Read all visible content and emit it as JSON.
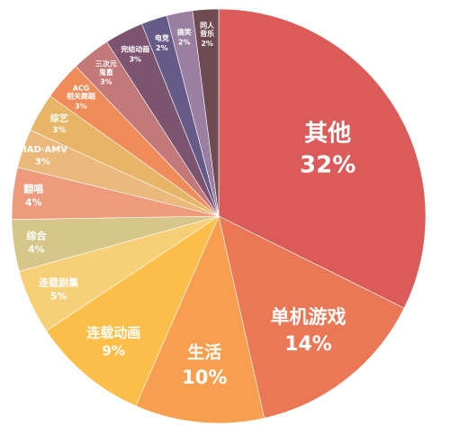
{
  "chart_data": {
    "type": "pie",
    "title": "",
    "slices": [
      {
        "label": "其他",
        "value": 32,
        "text": "32%",
        "color": "#DA5B5A"
      },
      {
        "label": "单机游戏",
        "value": 14,
        "text": "14%",
        "color": "#EA7755"
      },
      {
        "label": "生活",
        "value": 10,
        "text": "10%",
        "color": "#F79F4E"
      },
      {
        "label": "连载动画",
        "value": 9,
        "text": "9%",
        "color": "#FBBE48"
      },
      {
        "label": "连载剧集",
        "value": 5,
        "text": "5%",
        "color": "#F7CF78"
      },
      {
        "label": "综合",
        "value": 4,
        "text": "4%",
        "color": "#D7C68A"
      },
      {
        "label": "翻唱",
        "value": 4,
        "text": "4%",
        "color": "#EE9A7D"
      },
      {
        "label": "MAD·AMV",
        "value": 3,
        "text": "3%",
        "color": "#EBB97C"
      },
      {
        "label": "综艺",
        "value": 3,
        "text": "3%",
        "color": "#E6B568"
      },
      {
        "label": "ACG\n相关舞蹈",
        "value": 3,
        "text": "3%",
        "color": "#EF8C5A"
      },
      {
        "label": "三次元\n鬼畜",
        "value": 3,
        "text": "3%",
        "color": "#C37879"
      },
      {
        "label": "完结动画",
        "value": 3,
        "text": "3%",
        "color": "#7C5470"
      },
      {
        "label": "电竞",
        "value": 2,
        "text": "2%",
        "color": "#655A88"
      },
      {
        "label": "搞笑",
        "value": 2,
        "text": "2%",
        "color": "#9A7FA0"
      },
      {
        "label": "同人\n音乐",
        "value": 2,
        "text": "2%",
        "color": "#6E4A52"
      }
    ]
  }
}
